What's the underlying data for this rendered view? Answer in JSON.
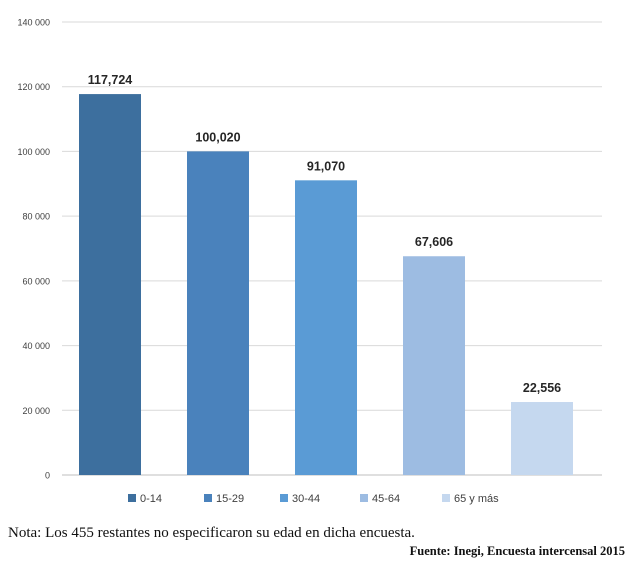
{
  "chart_data": {
    "type": "bar",
    "categories": [
      "0-14",
      "15-29",
      "30-44",
      "45-64",
      "65 y más"
    ],
    "values": [
      117724,
      100020,
      91070,
      67606,
      22556
    ],
    "data_labels": [
      "117,724",
      "100,020",
      "91,070",
      "67,606",
      "22,556"
    ],
    "title": "",
    "xlabel": "",
    "ylabel": "",
    "ylim": [
      0,
      140000
    ],
    "yticks": [
      0,
      20000,
      40000,
      60000,
      80000,
      100000,
      120000,
      140000
    ],
    "ytick_labels": [
      "0",
      "20 000",
      "40 000",
      "60 000",
      "80 000",
      "100 000",
      "120 000",
      "140 000"
    ],
    "grid": true,
    "legend": {
      "placement": "bottom",
      "entries": [
        "0-14",
        "15-29",
        "30-44",
        "45-64",
        "65 y más"
      ]
    },
    "colors": [
      "#3d6f9e",
      "#4a82bc",
      "#5a9bd5",
      "#9dbce2",
      "#c5d8ef"
    ]
  },
  "footer": {
    "note": "Nota: Los 455 restantes no especificaron su edad en dicha encuesta.",
    "source": "Fuente: Inegi, Encuesta intercensal 2015"
  }
}
